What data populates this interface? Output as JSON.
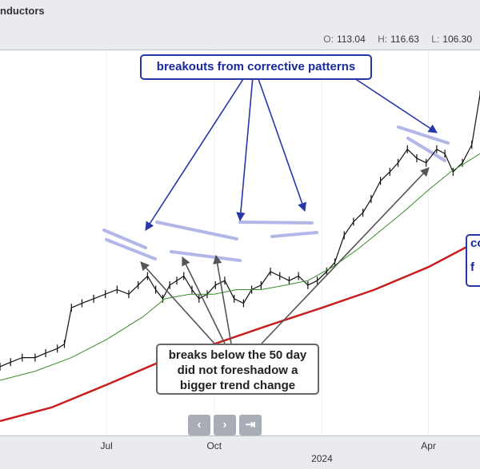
{
  "header": {
    "title": "nductors",
    "open_label": "O:",
    "open": "113.04",
    "high_label": "H:",
    "high": "116.63",
    "low_label": "L:",
    "low": "106.30"
  },
  "callouts": {
    "top": "breakouts from corrective patterns",
    "bottom": [
      "breaks below the 50 day",
      "did not foreshadow a",
      "bigger trend change"
    ],
    "side": [
      "co",
      "f"
    ]
  },
  "nav": {
    "prev": "‹",
    "next": "›",
    "end": "⇥"
  },
  "chart_data": {
    "type": "line",
    "x_tick_labels": [
      "Jul",
      "Oct",
      "2024",
      "Apr"
    ],
    "ylim": [
      40,
      125
    ],
    "colors": {
      "price": "#111111",
      "ma50": "#3a8a2a",
      "ma200": "#c81e1e",
      "pattern": "#aab0e6",
      "arrow_blue": "#2736a8",
      "arrow_gray": "#555555"
    },
    "x_range": [
      "2023-04-01",
      "2024-05-15"
    ],
    "series": [
      {
        "key": "price",
        "x": [
          "2023-04-01",
          "2023-04-10",
          "2023-04-20",
          "2023-05-01",
          "2023-05-10",
          "2023-05-20",
          "2023-05-26",
          "2023-06-01",
          "2023-06-10",
          "2023-06-20",
          "2023-06-30",
          "2023-07-10",
          "2023-07-20",
          "2023-07-28",
          "2023-08-05",
          "2023-08-12",
          "2023-08-18",
          "2023-08-24",
          "2023-08-30",
          "2023-09-05",
          "2023-09-12",
          "2023-09-18",
          "2023-09-25",
          "2023-10-02",
          "2023-10-10",
          "2023-10-18",
          "2023-10-26",
          "2023-11-02",
          "2023-11-10",
          "2023-11-18",
          "2023-11-26",
          "2023-12-04",
          "2023-12-12",
          "2023-12-20",
          "2023-12-28",
          "2024-01-05",
          "2024-01-12",
          "2024-01-20",
          "2024-01-28",
          "2024-02-05",
          "2024-02-12",
          "2024-02-20",
          "2024-02-28",
          "2024-03-06",
          "2024-03-14",
          "2024-03-22",
          "2024-03-30",
          "2024-04-08",
          "2024-04-15",
          "2024-04-22",
          "2024-04-30",
          "2024-05-08",
          "2024-05-15"
        ],
        "y": [
          55,
          56,
          57,
          57,
          58,
          59,
          60,
          68,
          69,
          70,
          71,
          72,
          71,
          73,
          75,
          72,
          70,
          73,
          74,
          75,
          72,
          70,
          71,
          73,
          74,
          70,
          69,
          72,
          73,
          76,
          75,
          74,
          75,
          73,
          74,
          76,
          78,
          84,
          87,
          89,
          92,
          96,
          98,
          100,
          103,
          101,
          100,
          103,
          102,
          98,
          100,
          104,
          115
        ]
      },
      {
        "key": "ma50",
        "x": [
          "2023-04-01",
          "2023-05-01",
          "2023-06-01",
          "2023-07-01",
          "2023-08-01",
          "2023-08-20",
          "2023-09-10",
          "2023-10-01",
          "2023-10-20",
          "2023-11-10",
          "2023-12-01",
          "2023-12-20",
          "2024-01-10",
          "2024-02-01",
          "2024-02-20",
          "2024-03-10",
          "2024-04-01",
          "2024-04-20",
          "2024-05-15"
        ],
        "y": [
          52,
          54,
          57,
          61,
          66,
          70,
          71,
          71,
          72,
          72,
          73,
          74,
          77,
          81,
          85,
          89,
          94,
          98,
          102
        ]
      },
      {
        "key": "ma200",
        "x": [
          "2023-04-01",
          "2023-05-15",
          "2023-07-01",
          "2023-08-15",
          "2023-10-01",
          "2023-11-15",
          "2024-01-01",
          "2024-02-15",
          "2024-04-01",
          "2024-05-15"
        ],
        "y": [
          43,
          46,
          51,
          56,
          60,
          64,
          68,
          72,
          77,
          83
        ]
      }
    ]
  }
}
